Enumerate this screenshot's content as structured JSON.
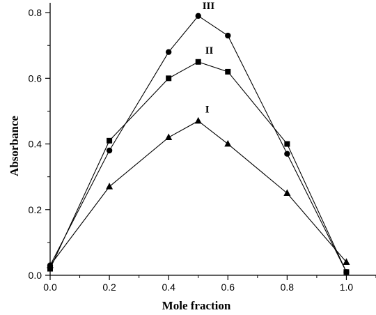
{
  "chart_data": {
    "type": "line",
    "title": "",
    "xlabel": "Mole fraction",
    "ylabel": "Absorbance",
    "xlim": [
      0.0,
      1.1
    ],
    "ylim": [
      0.0,
      0.83
    ],
    "x_ticks": [
      "0.0",
      "0.2",
      "0.4",
      "0.6",
      "0.8",
      "1.0"
    ],
    "y_ticks": [
      "0.0",
      "0.2",
      "0.4",
      "0.6",
      "0.8"
    ],
    "grid": false,
    "legend": "none",
    "line_color": "#000000",
    "series": [
      {
        "name": "I",
        "marker": "triangle",
        "x": [
          0.0,
          0.2,
          0.4,
          0.5,
          0.6,
          0.8,
          1.0
        ],
        "y": [
          0.03,
          0.27,
          0.42,
          0.47,
          0.4,
          0.25,
          0.04
        ]
      },
      {
        "name": "II",
        "marker": "square",
        "x": [
          0.0,
          0.2,
          0.4,
          0.5,
          0.6,
          0.8,
          1.0
        ],
        "y": [
          0.02,
          0.41,
          0.6,
          0.65,
          0.62,
          0.4,
          0.01
        ]
      },
      {
        "name": "III",
        "marker": "circle",
        "x": [
          0.0,
          0.2,
          0.4,
          0.5,
          0.6,
          0.8,
          1.0
        ],
        "y": [
          0.03,
          0.38,
          0.68,
          0.79,
          0.73,
          0.37,
          0.01
        ]
      }
    ]
  }
}
